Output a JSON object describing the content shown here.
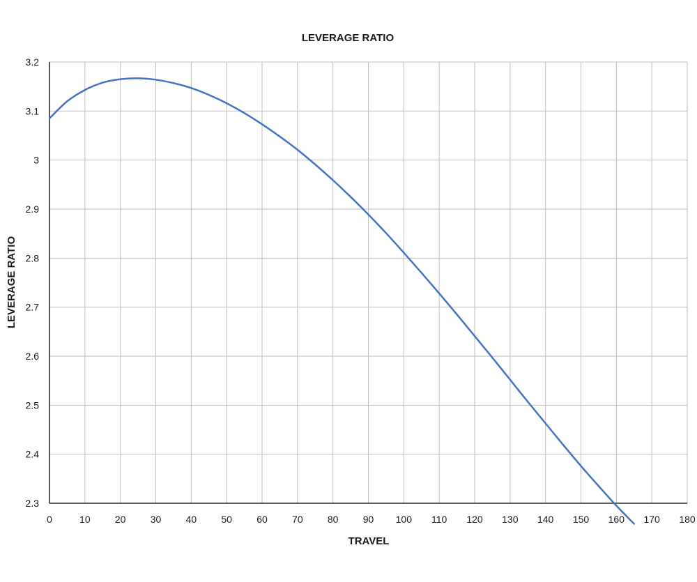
{
  "chart_data": {
    "type": "line",
    "title": "LEVERAGE RATIO",
    "xlabel": "TRAVEL",
    "ylabel": "LEVERAGE RATIO",
    "xlim": [
      0,
      180
    ],
    "ylim": [
      2.3,
      3.2
    ],
    "xticks": [
      "0",
      "10",
      "20",
      "30",
      "40",
      "50",
      "60",
      "70",
      "80",
      "90",
      "100",
      "110",
      "120",
      "130",
      "140",
      "150",
      "160",
      "170",
      "180"
    ],
    "yticks": [
      "2.3",
      "2.4",
      "2.5",
      "2.6",
      "2.7",
      "2.8",
      "2.9",
      "3",
      "3.1",
      "3.2"
    ],
    "grid": true,
    "legend": "none",
    "series": [
      {
        "color": "#4472c4",
        "x": [
          0,
          5,
          10,
          15,
          20,
          25,
          30,
          35,
          40,
          45,
          50,
          55,
          60,
          65,
          70,
          75,
          80,
          85,
          90,
          95,
          100,
          105,
          110,
          115,
          120,
          125,
          130,
          135,
          140,
          145,
          150,
          155,
          160,
          165
        ],
        "y": [
          3.085,
          3.12,
          3.143,
          3.158,
          3.165,
          3.167,
          3.164,
          3.157,
          3.147,
          3.133,
          3.116,
          3.096,
          3.073,
          3.048,
          3.021,
          2.991,
          2.959,
          2.925,
          2.889,
          2.851,
          2.811,
          2.77,
          2.728,
          2.685,
          2.641,
          2.597,
          2.552,
          2.507,
          2.463,
          2.419,
          2.376,
          2.335,
          2.295,
          2.258
        ]
      }
    ]
  }
}
